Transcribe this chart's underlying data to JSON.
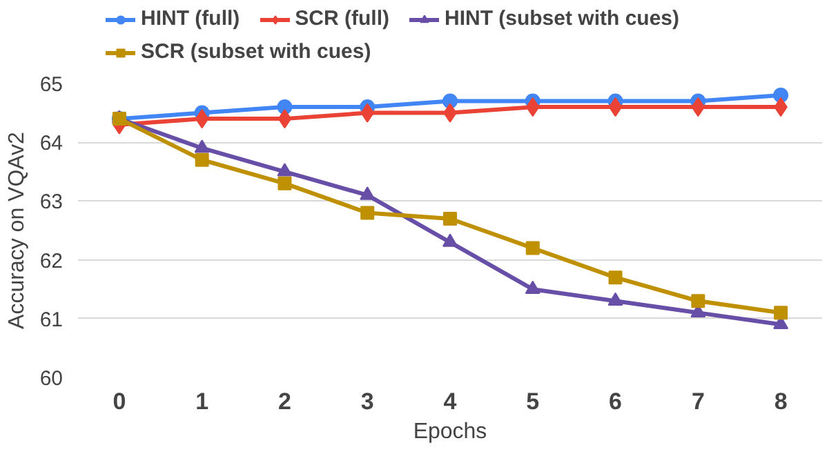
{
  "chart_data": {
    "type": "line",
    "xlabel": "Epochs",
    "ylabel": "Accuracy on VQAv2",
    "categories": [
      "0",
      "1",
      "2",
      "3",
      "4",
      "5",
      "6",
      "7",
      "8"
    ],
    "series": [
      {
        "name": "HINT (full)",
        "color": "#4285f4",
        "marker": "circle",
        "values": [
          64.4,
          64.5,
          64.6,
          64.6,
          64.7,
          64.7,
          64.7,
          64.7,
          64.8
        ]
      },
      {
        "name": "SCR (full)",
        "color": "#ea4335",
        "marker": "diamond",
        "values": [
          64.3,
          64.4,
          64.4,
          64.5,
          64.5,
          64.6,
          64.6,
          64.6,
          64.6
        ]
      },
      {
        "name": "HINT (subset with cues)",
        "color": "#674ea7",
        "marker": "triangle",
        "values": [
          64.4,
          63.9,
          63.5,
          63.1,
          62.3,
          61.5,
          61.3,
          61.1,
          60.9
        ]
      },
      {
        "name": "SCR (subset with cues)",
        "color": "#bf9000",
        "marker": "square",
        "values": [
          64.4,
          63.7,
          63.3,
          62.8,
          62.7,
          62.2,
          61.7,
          61.3,
          61.1
        ]
      }
    ],
    "ylim": [
      60,
      65
    ],
    "yticks": [
      60,
      61,
      62,
      63,
      64,
      65
    ],
    "grid": "y",
    "legend": "top"
  }
}
